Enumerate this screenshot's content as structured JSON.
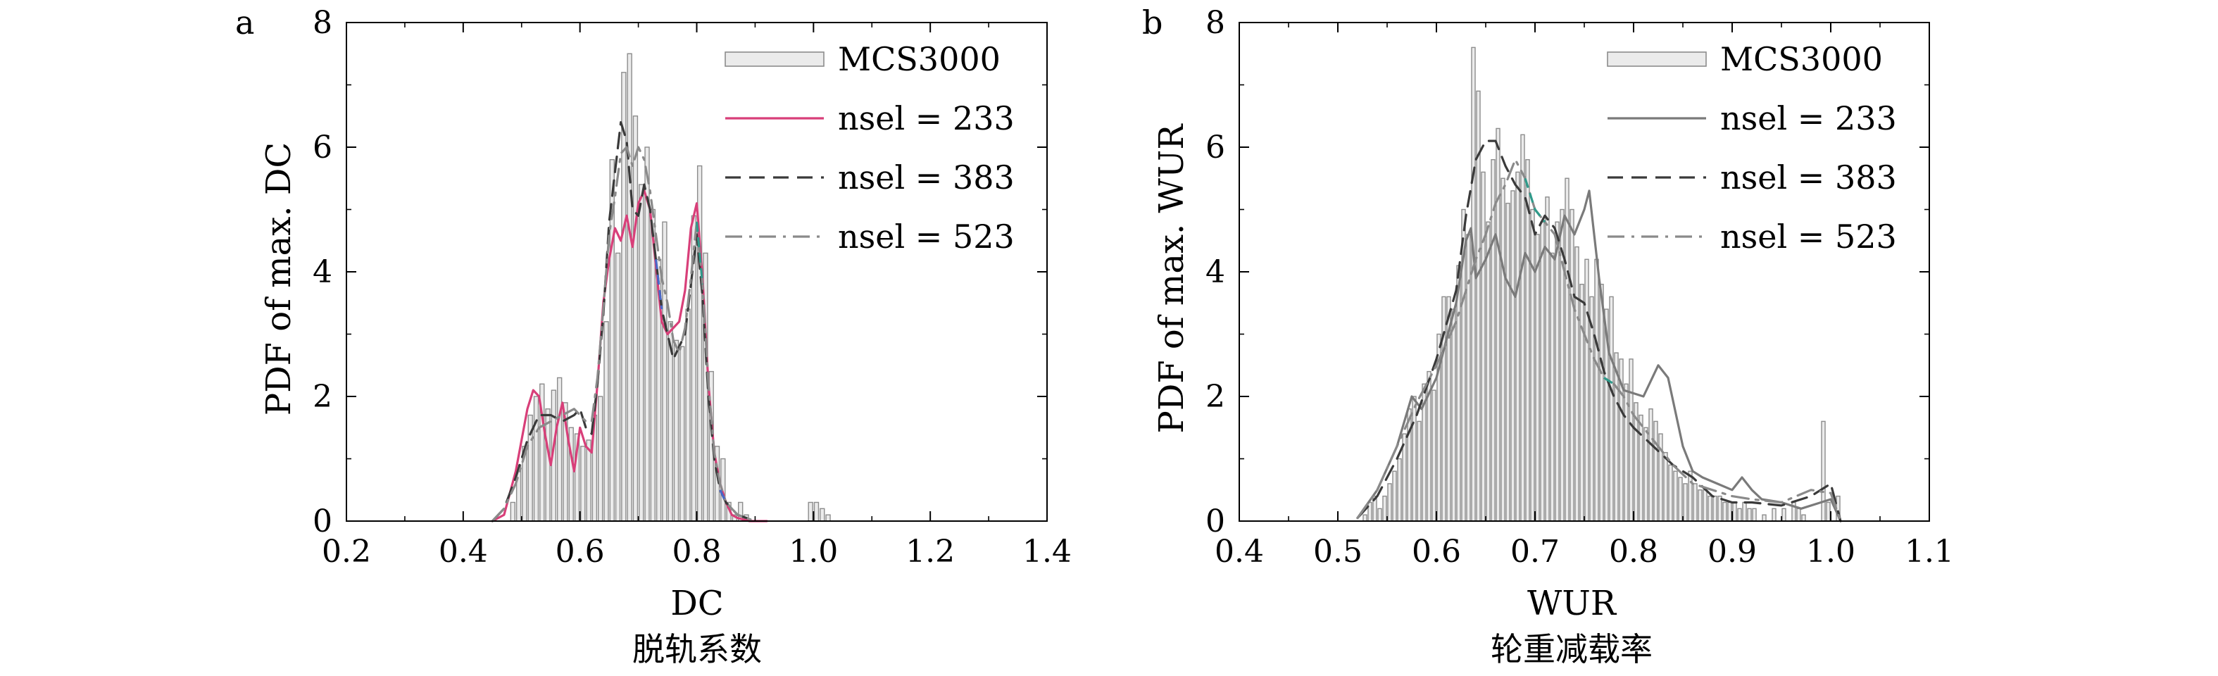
{
  "colors": {
    "hist_fill": "#ebebeb",
    "hist_edge": "#8c8c8c",
    "nsel233_a": "#d83f79",
    "nsel233_b": "#7a7a7a",
    "nsel383": "#3a3a3a",
    "nsel523": "#8a8a8a",
    "segment_blue": "#4a68c8",
    "segment_teal": "#2f9a8a"
  },
  "chart_data": [
    {
      "panel": "a",
      "type": "line",
      "xlabel": "DC",
      "ylabel": "PDF of max. DC",
      "caption": "脱轨系数",
      "xlim": [
        0.2,
        1.4
      ],
      "ylim": [
        0,
        8
      ],
      "xticks": [
        "0.2",
        "0.4",
        "0.6",
        "0.8",
        "1.0",
        "1.2",
        "1.4"
      ],
      "yticks": [
        "0",
        "2",
        "4",
        "6",
        "8"
      ],
      "legend": [
        "MCS3000",
        "nsel = 233",
        "nsel = 383",
        "nsel = 523"
      ],
      "legend_position": "top-right",
      "histogram": {
        "name": "MCS3000",
        "bin_width": 0.01,
        "bins": [
          [
            0.48,
            0.3
          ],
          [
            0.49,
            0.9
          ],
          [
            0.5,
            1.2
          ],
          [
            0.51,
            1.7
          ],
          [
            0.52,
            2.0
          ],
          [
            0.53,
            2.2
          ],
          [
            0.54,
            1.8
          ],
          [
            0.55,
            2.1
          ],
          [
            0.56,
            2.3
          ],
          [
            0.57,
            1.9
          ],
          [
            0.58,
            1.5
          ],
          [
            0.59,
            1.4
          ],
          [
            0.6,
            1.2
          ],
          [
            0.61,
            1.3
          ],
          [
            0.62,
            1.7
          ],
          [
            0.63,
            2.0
          ],
          [
            0.64,
            3.2
          ],
          [
            0.65,
            5.8
          ],
          [
            0.66,
            4.3
          ],
          [
            0.67,
            7.2
          ],
          [
            0.68,
            7.5
          ],
          [
            0.69,
            6.5
          ],
          [
            0.7,
            5.4
          ],
          [
            0.71,
            6.0
          ],
          [
            0.72,
            5.0
          ],
          [
            0.73,
            4.2
          ],
          [
            0.74,
            4.8
          ],
          [
            0.75,
            3.2
          ],
          [
            0.76,
            2.9
          ],
          [
            0.77,
            2.8
          ],
          [
            0.78,
            3.4
          ],
          [
            0.79,
            4.9
          ],
          [
            0.8,
            5.7
          ],
          [
            0.81,
            4.3
          ],
          [
            0.82,
            2.4
          ],
          [
            0.83,
            1.2
          ],
          [
            0.84,
            1.0
          ],
          [
            0.85,
            0.3
          ],
          [
            0.86,
            0.1
          ],
          [
            0.87,
            0.3
          ],
          [
            0.88,
            0.1
          ],
          [
            0.99,
            0.3
          ],
          [
            1.0,
            0.3
          ],
          [
            1.01,
            0.2
          ],
          [
            1.02,
            0.1
          ]
        ]
      },
      "series": [
        {
          "name": "nsel = 233",
          "style": "solid",
          "x": [
            0.45,
            0.47,
            0.49,
            0.51,
            0.52,
            0.53,
            0.54,
            0.55,
            0.56,
            0.57,
            0.58,
            0.59,
            0.6,
            0.61,
            0.62,
            0.63,
            0.64,
            0.65,
            0.66,
            0.67,
            0.68,
            0.69,
            0.7,
            0.71,
            0.72,
            0.73,
            0.74,
            0.75,
            0.76,
            0.77,
            0.78,
            0.79,
            0.8,
            0.81,
            0.82,
            0.83,
            0.84,
            0.85,
            0.86,
            0.87,
            0.89,
            0.92
          ],
          "y": [
            0,
            0.1,
            0.8,
            1.8,
            2.1,
            2.0,
            1.4,
            0.9,
            1.5,
            1.9,
            1.3,
            0.8,
            1.5,
            1.2,
            1.1,
            2.2,
            3.5,
            4.2,
            4.7,
            4.5,
            4.9,
            4.4,
            5.1,
            5.3,
            5.0,
            4.1,
            3.2,
            3.0,
            3.1,
            3.2,
            3.7,
            4.7,
            5.1,
            3.9,
            2.2,
            1.1,
            0.6,
            0.3,
            0.1,
            0.05,
            0,
            0
          ]
        },
        {
          "name": "nsel = 383",
          "style": "dashed",
          "x": [
            0.45,
            0.47,
            0.49,
            0.51,
            0.53,
            0.55,
            0.57,
            0.59,
            0.6,
            0.61,
            0.62,
            0.63,
            0.64,
            0.65,
            0.66,
            0.67,
            0.68,
            0.69,
            0.7,
            0.71,
            0.72,
            0.73,
            0.74,
            0.75,
            0.76,
            0.77,
            0.78,
            0.79,
            0.8,
            0.81,
            0.82,
            0.83,
            0.84,
            0.85,
            0.87,
            0.9
          ],
          "y": [
            0,
            0.2,
            0.7,
            1.3,
            1.7,
            1.7,
            1.6,
            1.7,
            1.8,
            1.5,
            1.4,
            2.2,
            3.3,
            4.8,
            5.6,
            6.4,
            6.1,
            5.0,
            4.9,
            5.4,
            5.0,
            4.2,
            3.4,
            3.0,
            2.6,
            2.8,
            3.0,
            3.8,
            4.6,
            3.6,
            2.0,
            1.0,
            0.5,
            0.3,
            0.1,
            0
          ]
        },
        {
          "name": "nsel = 523",
          "style": "dashdot",
          "x": [
            0.45,
            0.47,
            0.49,
            0.51,
            0.53,
            0.55,
            0.57,
            0.59,
            0.6,
            0.61,
            0.62,
            0.63,
            0.64,
            0.65,
            0.66,
            0.67,
            0.68,
            0.69,
            0.7,
            0.71,
            0.72,
            0.73,
            0.74,
            0.75,
            0.76,
            0.77,
            0.78,
            0.79,
            0.8,
            0.81,
            0.82,
            0.83,
            0.84,
            0.85,
            0.87,
            0.9
          ],
          "y": [
            0,
            0.2,
            0.6,
            1.2,
            1.5,
            1.6,
            1.7,
            1.8,
            1.7,
            1.6,
            1.6,
            2.3,
            3.4,
            4.6,
            5.2,
            5.9,
            6.0,
            5.7,
            6.0,
            5.8,
            5.3,
            4.6,
            3.9,
            3.5,
            2.9,
            2.7,
            3.1,
            3.9,
            4.8,
            3.8,
            2.2,
            1.1,
            0.6,
            0.3,
            0.1,
            0
          ]
        }
      ]
    },
    {
      "panel": "b",
      "type": "line",
      "xlabel": "WUR",
      "ylabel": "PDF of max. WUR",
      "caption": "轮重减载率",
      "xlim": [
        0.4,
        1.1
      ],
      "ylim": [
        0,
        8
      ],
      "xticks": [
        "0.4",
        "0.5",
        "0.6",
        "0.7",
        "0.8",
        "0.9",
        "1.0",
        "1.1"
      ],
      "yticks": [
        "0",
        "2",
        "4",
        "6",
        "8"
      ],
      "legend": [
        "MCS3000",
        "nsel = 233",
        "nsel = 383",
        "nsel = 523"
      ],
      "legend_position": "top-right",
      "histogram": {
        "name": "MCS3000",
        "bin_width": 0.005,
        "bins": [
          [
            0.525,
            0.1
          ],
          [
            0.53,
            0.3
          ],
          [
            0.535,
            0.4
          ],
          [
            0.54,
            0.2
          ],
          [
            0.545,
            0.4
          ],
          [
            0.55,
            0.6
          ],
          [
            0.555,
            0.8
          ],
          [
            0.56,
            1.0
          ],
          [
            0.565,
            1.4
          ],
          [
            0.57,
            1.8
          ],
          [
            0.575,
            2.0
          ],
          [
            0.58,
            1.6
          ],
          [
            0.585,
            2.2
          ],
          [
            0.59,
            2.4
          ],
          [
            0.595,
            2.1
          ],
          [
            0.6,
            3.0
          ],
          [
            0.605,
            3.6
          ],
          [
            0.61,
            3.6
          ],
          [
            0.615,
            3.4
          ],
          [
            0.62,
            4.1
          ],
          [
            0.625,
            5.0
          ],
          [
            0.63,
            4.6
          ],
          [
            0.635,
            7.6
          ],
          [
            0.64,
            6.9
          ],
          [
            0.645,
            5.6
          ],
          [
            0.65,
            4.8
          ],
          [
            0.655,
            5.8
          ],
          [
            0.66,
            6.3
          ],
          [
            0.665,
            5.5
          ],
          [
            0.67,
            5.1
          ],
          [
            0.675,
            5.3
          ],
          [
            0.68,
            5.6
          ],
          [
            0.685,
            6.2
          ],
          [
            0.69,
            5.8
          ],
          [
            0.695,
            5.0
          ],
          [
            0.7,
            4.6
          ],
          [
            0.705,
            4.8
          ],
          [
            0.71,
            5.2
          ],
          [
            0.715,
            4.3
          ],
          [
            0.72,
            4.8
          ],
          [
            0.725,
            5.0
          ],
          [
            0.73,
            5.5
          ],
          [
            0.735,
            5.0
          ],
          [
            0.74,
            4.4
          ],
          [
            0.745,
            3.8
          ],
          [
            0.75,
            4.2
          ],
          [
            0.755,
            3.6
          ],
          [
            0.76,
            4.2
          ],
          [
            0.765,
            3.8
          ],
          [
            0.77,
            3.4
          ],
          [
            0.775,
            3.6
          ],
          [
            0.78,
            2.7
          ],
          [
            0.785,
            2.6
          ],
          [
            0.79,
            2.2
          ],
          [
            0.795,
            2.6
          ],
          [
            0.8,
            1.9
          ],
          [
            0.805,
            1.7
          ],
          [
            0.81,
            1.5
          ],
          [
            0.815,
            1.8
          ],
          [
            0.82,
            1.6
          ],
          [
            0.825,
            1.4
          ],
          [
            0.83,
            1.1
          ],
          [
            0.835,
            0.9
          ],
          [
            0.84,
            0.8
          ],
          [
            0.845,
            0.7
          ],
          [
            0.85,
            0.6
          ],
          [
            0.855,
            0.8
          ],
          [
            0.86,
            0.6
          ],
          [
            0.865,
            0.5
          ],
          [
            0.87,
            0.5
          ],
          [
            0.875,
            0.4
          ],
          [
            0.88,
            0.4
          ],
          [
            0.885,
            0.4
          ],
          [
            0.89,
            0.3
          ],
          [
            0.895,
            0.3
          ],
          [
            0.9,
            0.3
          ],
          [
            0.905,
            0.2
          ],
          [
            0.91,
            0.3
          ],
          [
            0.915,
            0.2
          ],
          [
            0.92,
            0.2
          ],
          [
            0.93,
            0.1
          ],
          [
            0.94,
            0.2
          ],
          [
            0.95,
            0.2
          ],
          [
            0.96,
            0.3
          ],
          [
            0.965,
            0.2
          ],
          [
            0.97,
            0.1
          ],
          [
            0.99,
            1.6
          ],
          [
            0.995,
            0.3
          ],
          [
            1.005,
            0.4
          ]
        ]
      },
      "series": [
        {
          "name": "nsel = 233",
          "style": "solid",
          "x": [
            0.52,
            0.54,
            0.56,
            0.575,
            0.585,
            0.6,
            0.61,
            0.62,
            0.63,
            0.635,
            0.64,
            0.65,
            0.66,
            0.67,
            0.68,
            0.69,
            0.7,
            0.71,
            0.72,
            0.73,
            0.74,
            0.75,
            0.755,
            0.765,
            0.775,
            0.79,
            0.81,
            0.825,
            0.835,
            0.85,
            0.86,
            0.87,
            0.885,
            0.9,
            0.91,
            0.92,
            0.93,
            0.95,
            0.97,
            0.99,
            1.0,
            1.01
          ],
          "y": [
            0.05,
            0.5,
            1.2,
            2.0,
            1.8,
            2.3,
            2.9,
            3.5,
            4.5,
            4.7,
            3.9,
            4.2,
            4.6,
            3.9,
            3.6,
            4.3,
            4.0,
            4.4,
            4.2,
            4.9,
            4.6,
            5.0,
            5.3,
            3.9,
            2.7,
            2.1,
            2.0,
            2.5,
            2.3,
            1.2,
            0.8,
            0.7,
            0.6,
            0.5,
            0.7,
            0.5,
            0.35,
            0.3,
            0.2,
            0.3,
            0.35,
            0
          ]
        },
        {
          "name": "nsel = 383",
          "style": "dashed",
          "x": [
            0.52,
            0.54,
            0.56,
            0.58,
            0.6,
            0.62,
            0.63,
            0.64,
            0.65,
            0.66,
            0.67,
            0.68,
            0.69,
            0.7,
            0.71,
            0.72,
            0.73,
            0.74,
            0.75,
            0.76,
            0.77,
            0.78,
            0.79,
            0.8,
            0.82,
            0.84,
            0.86,
            0.88,
            0.9,
            0.92,
            0.95,
            0.98,
            1.0,
            1.01
          ],
          "y": [
            0.05,
            0.4,
            1.0,
            1.7,
            2.6,
            3.7,
            4.9,
            5.8,
            6.1,
            6.1,
            5.7,
            5.4,
            5.2,
            4.6,
            4.9,
            4.7,
            4.2,
            3.6,
            3.5,
            3.0,
            2.4,
            2.0,
            1.7,
            1.5,
            1.2,
            0.9,
            0.7,
            0.4,
            0.3,
            0.3,
            0.25,
            0.4,
            0.6,
            0
          ]
        },
        {
          "name": "nsel = 523",
          "style": "dashdot",
          "x": [
            0.52,
            0.54,
            0.56,
            0.58,
            0.6,
            0.62,
            0.64,
            0.65,
            0.66,
            0.67,
            0.68,
            0.69,
            0.7,
            0.71,
            0.72,
            0.73,
            0.74,
            0.75,
            0.76,
            0.77,
            0.78,
            0.79,
            0.8,
            0.82,
            0.84,
            0.86,
            0.88,
            0.9,
            0.92,
            0.95,
            0.98,
            1.0,
            1.01
          ],
          "y": [
            0.05,
            0.5,
            1.2,
            1.9,
            2.5,
            3.2,
            4.2,
            4.6,
            5.1,
            5.4,
            5.8,
            5.5,
            5.0,
            4.8,
            4.6,
            4.0,
            3.4,
            3.0,
            2.6,
            2.3,
            2.2,
            2.0,
            1.7,
            1.3,
            0.9,
            0.6,
            0.5,
            0.4,
            0.35,
            0.3,
            0.5,
            0.45,
            0
          ]
        }
      ]
    }
  ]
}
